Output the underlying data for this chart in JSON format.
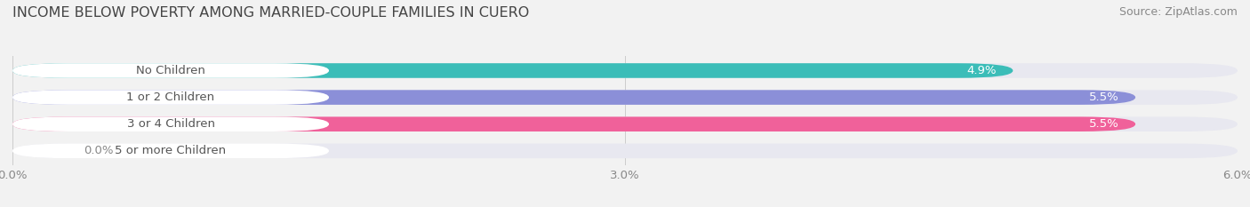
{
  "title": "INCOME BELOW POVERTY AMONG MARRIED-COUPLE FAMILIES IN CUERO",
  "source": "Source: ZipAtlas.com",
  "categories": [
    "No Children",
    "1 or 2 Children",
    "3 or 4 Children",
    "5 or more Children"
  ],
  "values": [
    4.9,
    5.5,
    5.5,
    0.0
  ],
  "bar_colors": [
    "#3bbdb8",
    "#8b8fd8",
    "#f0619a",
    "#f5c89a"
  ],
  "bar_bg_color": "#e8e8f0",
  "value_labels": [
    "4.9%",
    "5.5%",
    "5.5%",
    "0.0%"
  ],
  "xlim": [
    0,
    6.0
  ],
  "xticks": [
    0.0,
    3.0,
    6.0
  ],
  "xticklabels": [
    "0.0%",
    "3.0%",
    "6.0%"
  ],
  "title_fontsize": 11.5,
  "source_fontsize": 9,
  "label_fontsize": 9.5,
  "value_fontsize": 9.5,
  "tick_fontsize": 9.5,
  "background_color": "#f2f2f2",
  "bar_height": 0.55,
  "label_bg_color": "#ffffff"
}
